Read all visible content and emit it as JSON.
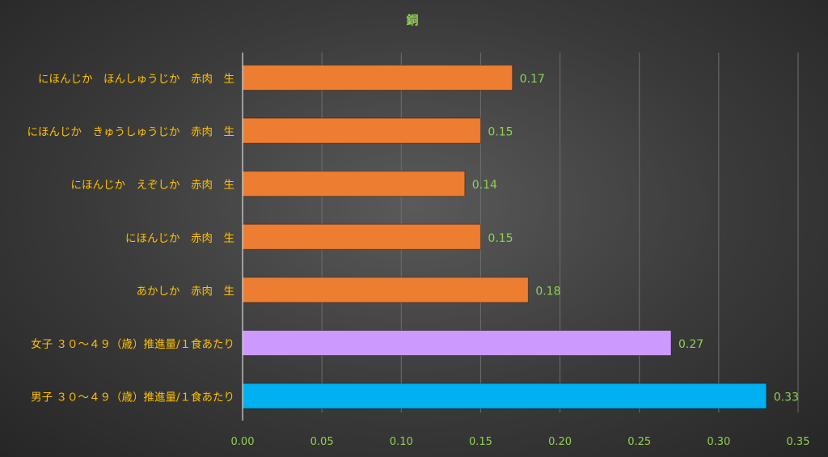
{
  "chart_data": {
    "type": "bar",
    "orientation": "horizontal",
    "title": "銅",
    "xlabel": "",
    "ylabel": "",
    "xlim": [
      0,
      0.35
    ],
    "x_ticks": [
      "0.00",
      "0.05",
      "0.10",
      "0.15",
      "0.20",
      "0.25",
      "0.30",
      "0.35"
    ],
    "grid": "vertical",
    "categories": [
      "にほんじか　ほんしゅうじか　赤肉　生",
      "にほんじか　きゅうしゅうじか　赤肉　生",
      "にほんじか　えぞしか　赤肉　生",
      "にほんじか　赤肉　生",
      "あかしか　赤肉　生",
      "女子 ３０～４９（歳）推進量/１食あたり",
      "男子 ３０～４９（歳）推進量/１食あたり"
    ],
    "values": [
      0.17,
      0.15,
      0.14,
      0.15,
      0.18,
      0.27,
      0.33
    ],
    "value_labels": [
      "0.17",
      "0.15",
      "0.14",
      "0.15",
      "0.18",
      "0.27",
      "0.33"
    ],
    "bar_colors": [
      "#ed7d31",
      "#ed7d31",
      "#ed7d31",
      "#ed7d31",
      "#ed7d31",
      "#cc99ff",
      "#00b0f0"
    ],
    "colors": {
      "title": "#92d050",
      "category_label": "#ffc000",
      "value_label": "#92d050",
      "tick_label": "#92d050",
      "grid": "#6e6e6e"
    }
  }
}
